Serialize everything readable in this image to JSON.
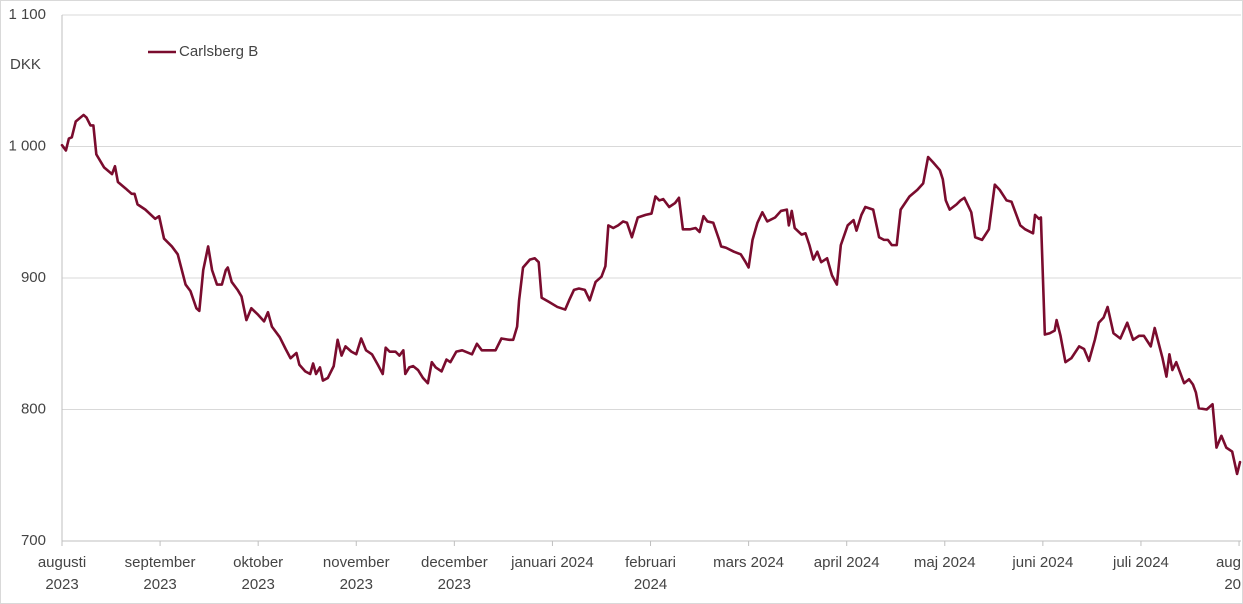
{
  "chart_data": {
    "type": "line",
    "y_unit_label": "DKK",
    "ylim": [
      700,
      1100
    ],
    "yticks": [
      {
        "value": 700,
        "label": "700"
      },
      {
        "value": 800,
        "label": "800"
      },
      {
        "value": 900,
        "label": "900"
      },
      {
        "value": 1000,
        "label": "1 000"
      },
      {
        "value": 1100,
        "label": "1 100"
      }
    ],
    "xlim": [
      0,
      12.02
    ],
    "xticks": [
      {
        "value": 0,
        "label": [
          "augusti",
          "2023"
        ]
      },
      {
        "value": 1,
        "label": [
          "september",
          "2023"
        ]
      },
      {
        "value": 2,
        "label": [
          "oktober",
          "2023"
        ]
      },
      {
        "value": 3,
        "label": [
          "november",
          "2023"
        ]
      },
      {
        "value": 4,
        "label": [
          "december",
          "2023"
        ]
      },
      {
        "value": 5,
        "label": [
          "januari 2024"
        ]
      },
      {
        "value": 6,
        "label": [
          "februari",
          "2024"
        ]
      },
      {
        "value": 7,
        "label": [
          "mars 2024"
        ]
      },
      {
        "value": 8,
        "label": [
          "april 2024"
        ]
      },
      {
        "value": 9,
        "label": [
          "maj 2024"
        ]
      },
      {
        "value": 10,
        "label": [
          "juni 2024"
        ]
      },
      {
        "value": 11,
        "label": [
          "juli 2024"
        ]
      },
      {
        "value": 12,
        "label": [
          "aug",
          "20"
        ]
      }
    ],
    "grid": true,
    "legend": "top-left",
    "x": [
      0,
      0.04,
      0.07,
      0.1,
      0.14,
      0.22,
      0.25,
      0.29,
      0.32,
      0.35,
      0.43,
      0.51,
      0.54,
      0.57,
      0.65,
      0.71,
      0.74,
      0.77,
      0.85,
      0.95,
      0.99,
      1.04,
      1.12,
      1.18,
      1.26,
      1.31,
      1.37,
      1.4,
      1.44,
      1.49,
      1.53,
      1.58,
      1.63,
      1.67,
      1.69,
      1.73,
      1.79,
      1.83,
      1.88,
      1.93,
      2.0,
      2.06,
      2.1,
      2.14,
      2.22,
      2.28,
      2.33,
      2.39,
      2.42,
      2.48,
      2.53,
      2.56,
      2.59,
      2.63,
      2.66,
      2.71,
      2.77,
      2.81,
      2.85,
      2.89,
      2.95,
      3.0,
      3.05,
      3.1,
      3.16,
      3.22,
      3.27,
      3.3,
      3.34,
      3.4,
      3.44,
      3.48,
      3.5,
      3.54,
      3.58,
      3.63,
      3.68,
      3.73,
      3.77,
      3.81,
      3.87,
      3.92,
      3.96,
      4.02,
      4.08,
      4.18,
      4.23,
      4.28,
      4.34,
      4.42,
      4.48,
      4.56,
      4.6,
      4.64,
      4.66,
      4.7,
      4.77,
      4.82,
      4.86,
      4.89,
      4.96,
      5.05,
      5.13,
      5.17,
      5.22,
      5.27,
      5.33,
      5.38,
      5.44,
      5.5,
      5.54,
      5.57,
      5.62,
      5.67,
      5.72,
      5.76,
      5.81,
      5.87,
      5.95,
      6.01,
      6.05,
      6.09,
      6.13,
      6.19,
      6.25,
      6.29,
      6.33,
      6.4,
      6.46,
      6.5,
      6.54,
      6.58,
      6.64,
      6.7,
      6.72,
      6.77,
      6.85,
      6.92,
      6.97,
      7.0,
      7.04,
      7.09,
      7.14,
      7.19,
      7.27,
      7.33,
      7.39,
      7.41,
      7.44,
      7.47,
      7.54,
      7.58,
      7.62,
      7.66,
      7.7,
      7.74,
      7.8,
      7.85,
      7.9,
      7.94,
      8.01,
      8.07,
      8.1,
      8.15,
      8.19,
      8.27,
      8.33,
      8.38,
      8.42,
      8.46,
      8.51,
      8.55,
      8.64,
      8.72,
      8.78,
      8.83,
      8.88,
      8.95,
      8.98,
      9.01,
      9.05,
      9.12,
      9.16,
      9.2,
      9.27,
      9.31,
      9.38,
      9.45,
      9.51,
      9.56,
      9.63,
      9.68,
      9.77,
      9.82,
      9.9,
      9.92,
      9.96,
      9.98,
      10.02,
      10.07,
      10.12,
      10.14,
      10.18,
      10.23,
      10.29,
      10.37,
      10.42,
      10.47,
      10.53,
      10.57,
      10.62,
      10.66,
      10.72,
      10.79,
      10.86,
      10.92,
      10.98,
      11.03,
      11.1,
      11.14,
      11.22,
      11.26,
      11.29,
      11.32,
      11.36,
      11.44,
      11.49,
      11.53,
      11.56,
      11.59,
      11.67,
      11.73,
      11.77,
      11.82,
      11.87,
      11.93,
      11.98,
      12.01
    ],
    "series": [
      {
        "name": "Carlsberg B",
        "color": "#7a0c2e",
        "values": [
          1001,
          997,
          1006,
          1007,
          1019,
          1024,
          1022,
          1016,
          1016,
          994,
          984,
          979,
          985,
          973,
          968,
          964,
          964,
          956,
          952,
          945,
          947,
          930,
          924,
          918,
          895,
          890,
          877,
          875,
          906,
          924,
          906,
          895,
          895,
          906,
          908,
          897,
          891,
          886,
          868,
          877,
          872,
          867,
          874,
          863,
          855,
          846,
          839,
          843,
          834,
          829,
          827,
          835,
          827,
          832,
          822,
          824,
          833,
          853,
          841,
          848,
          844,
          842,
          854,
          845,
          842,
          834,
          827,
          847,
          844,
          844,
          841,
          845,
          827,
          832,
          833,
          830,
          824,
          820,
          836,
          832,
          829,
          838,
          836,
          844,
          845,
          842,
          850,
          845,
          845,
          845,
          854,
          853,
          853,
          863,
          883,
          908,
          914,
          915,
          912,
          885,
          882,
          878,
          876,
          883,
          891,
          892,
          891,
          883,
          897,
          901,
          909,
          940,
          938,
          940,
          943,
          942,
          931,
          946,
          948,
          949,
          962,
          959,
          960,
          954,
          957,
          961,
          937,
          937,
          938,
          935,
          947,
          943,
          942,
          929,
          924,
          923,
          920,
          918,
          912,
          908,
          929,
          942,
          950,
          943,
          946,
          951,
          952,
          940,
          951,
          938,
          933,
          934,
          925,
          914,
          920,
          912,
          915,
          902,
          895,
          925,
          940,
          944,
          936,
          948,
          954,
          952,
          931,
          929,
          929,
          925,
          925,
          952,
          962,
          967,
          972,
          992,
          988,
          982,
          975,
          959,
          952,
          956,
          959,
          961,
          950,
          931,
          929,
          937,
          971,
          967,
          959,
          958,
          940,
          937,
          934,
          948,
          945,
          946,
          857,
          858,
          860,
          868,
          856,
          836,
          839,
          848,
          846,
          837,
          853,
          866,
          870,
          878,
          858,
          854,
          866,
          853,
          856,
          856,
          848,
          862,
          839,
          825,
          842,
          830,
          836,
          820,
          823,
          819,
          813,
          801,
          800,
          804,
          771,
          780,
          771,
          768,
          751,
          760
        ]
      }
    ]
  }
}
